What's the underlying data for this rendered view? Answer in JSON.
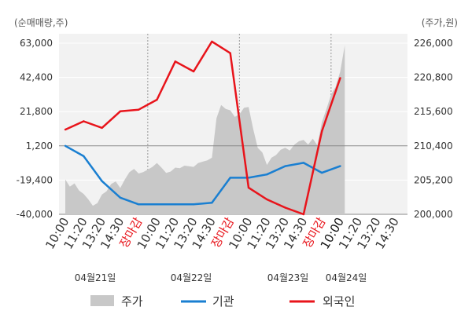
{
  "chart_data": {
    "type": "line",
    "left_axis_unit": "(순매매량,주)",
    "right_axis_unit": "(주가,원)",
    "left_ticks": [
      "63,000",
      "42,400",
      "21,800",
      "1,200",
      "-19,400",
      "-40,000"
    ],
    "right_ticks": [
      "226,000",
      "220,800",
      "215,600",
      "210,400",
      "205,200",
      "200,000"
    ],
    "left_ylim": [
      -40000,
      63000
    ],
    "right_ylim": [
      200000,
      226000
    ],
    "reference_line_value": 1200,
    "x_tick_labels": [
      "10:00",
      "11:20",
      "13:20",
      "14:30",
      "장마감",
      "10:00",
      "11:20",
      "13:20",
      "14:30",
      "장마감",
      "10:00",
      "11:20",
      "13:20",
      "14:30",
      "장마감",
      "10:00",
      "11:20",
      "13:20",
      "14:30"
    ],
    "x_tick_red": [
      false,
      false,
      false,
      false,
      true,
      false,
      false,
      false,
      false,
      true,
      false,
      false,
      false,
      false,
      true,
      false,
      false,
      false,
      false
    ],
    "day_labels": [
      "04월21일",
      "04월22일",
      "04월23일",
      "04월24일"
    ],
    "day_divider_ticks": [
      4.5,
      9.5,
      14.5
    ],
    "series": [
      {
        "name": "기관",
        "color": "#1a7fd1",
        "x": [
          0,
          1,
          2,
          3,
          4,
          5,
          6,
          7,
          8,
          9,
          10,
          11,
          12,
          13,
          14,
          15,
          16
        ],
        "values": [
          1200,
          -5000,
          -20000,
          -30000,
          -34000,
          -34000,
          -34000,
          -34000,
          -33000,
          -18000,
          -18000,
          -16000,
          -11000,
          -9000,
          -15000,
          -11000,
          null
        ]
      },
      {
        "name": "외국인",
        "color": "#e8141b",
        "x": [
          0,
          1,
          2,
          3,
          4,
          5,
          6,
          7,
          8,
          9,
          10,
          11,
          12,
          13,
          14,
          15,
          16
        ],
        "values": [
          11000,
          16000,
          12000,
          22000,
          23000,
          29000,
          52000,
          46000,
          64000,
          57000,
          -24000,
          -31000,
          -36000,
          -40000,
          10000,
          42000,
          null
        ]
      },
      {
        "name": "주가",
        "color": "#c8c8c8",
        "type": "area",
        "x": [
          0,
          0.25,
          0.5,
          0.75,
          1,
          1.25,
          1.5,
          1.75,
          2,
          2.25,
          2.5,
          2.75,
          3,
          3.25,
          3.5,
          3.75,
          4,
          4.25,
          4.5,
          4.75,
          5,
          5.25,
          5.5,
          5.75,
          6,
          6.25,
          6.5,
          6.75,
          7,
          7.25,
          7.5,
          7.75,
          8,
          8.25,
          8.5,
          8.75,
          9,
          9.25,
          9.5,
          9.75,
          10,
          10.25,
          10.5,
          10.75,
          11,
          11.25,
          11.5,
          11.75,
          12,
          12.25,
          12.5,
          12.75,
          13,
          13.25,
          13.5,
          13.75,
          14,
          14.25,
          14.5,
          14.75,
          15,
          15.25
        ],
        "values": [
          205300,
          204200,
          204700,
          203600,
          203100,
          202300,
          201300,
          201700,
          203000,
          203500,
          204600,
          205000,
          204000,
          205300,
          206400,
          206900,
          206200,
          206400,
          206800,
          207200,
          207800,
          207100,
          206300,
          206500,
          207100,
          207000,
          207400,
          207300,
          207200,
          207800,
          208000,
          208200,
          208600,
          214600,
          216600,
          216000,
          215800,
          214800,
          215200,
          216200,
          216300,
          213000,
          210100,
          209400,
          207500,
          208600,
          209000,
          209800,
          210100,
          209700,
          210600,
          211100,
          211300,
          210600,
          211500,
          210500,
          214000,
          216000,
          218200,
          219400,
          221700,
          225700
        ]
      }
    ],
    "legend": [
      "주가",
      "기관",
      "외국인"
    ],
    "legend_position": "bottom",
    "grid": true
  }
}
